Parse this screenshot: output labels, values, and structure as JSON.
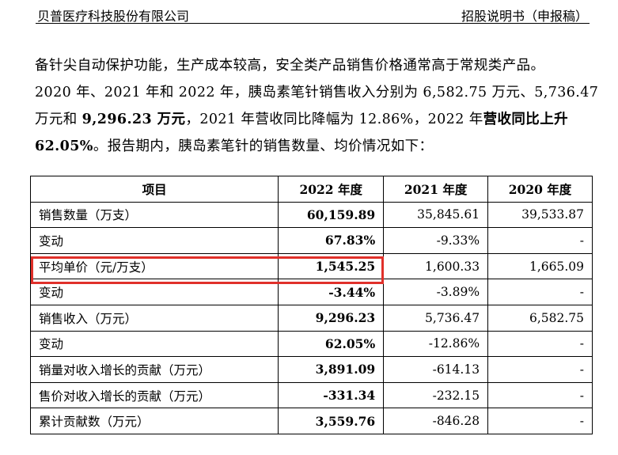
{
  "header": {
    "company": "贝普医疗科技股份有限公司",
    "doc_type": "招股说明书（申报稿）"
  },
  "paragraph": {
    "line1": "备针尖自动保护功能，生产成本较高，安全类产品销售价格通常高于常规类产品。",
    "line2": "2020 年、2021 年和 2022 年，胰岛素笔针销售收入分别为 6,582.75 万元、5,736.47",
    "line3_a": "万元和 ",
    "line3_b": "9,296.23 万元",
    "line3_c": "，2021 年营收同比降幅为 12.86%，2022 年",
    "line3_d": "营收同比上升",
    "line4_a": "62.05%",
    "line4_b": "。报告期内，胰岛素笔针的销售数量、均价情况如下："
  },
  "table": {
    "headers": [
      "项目",
      "2022 年度",
      "2021 年度",
      "2020 年度"
    ],
    "rows": [
      [
        "销售数量（万支）",
        "60,159.89",
        "35,845.61",
        "39,533.87"
      ],
      [
        "变动",
        "67.83%",
        "-9.33%",
        "-"
      ],
      [
        "平均单价（元/万支）",
        "1,545.25",
        "1,600.33",
        "1,665.09"
      ],
      [
        "变动",
        "-3.44%",
        "-3.89%",
        "-"
      ],
      [
        "销售收入（万元）",
        "9,296.23",
        "5,736.47",
        "6,582.75"
      ],
      [
        "变动",
        "62.05%",
        "-12.86%",
        "-"
      ],
      [
        "销量对收入增长的贡献（万元）",
        "3,891.09",
        "-614.13",
        "-"
      ],
      [
        "售价对收入增长的贡献（万元）",
        "-331.34",
        "-232.15",
        "-"
      ],
      [
        "累计贡献数（万元）",
        "3,559.76",
        "-846.28",
        "-"
      ]
    ]
  },
  "colors": {
    "highlight_border": "#e0302a"
  }
}
